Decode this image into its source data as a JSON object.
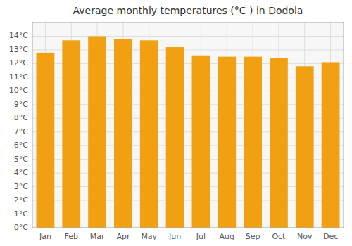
{
  "chart_data": {
    "type": "bar",
    "title": "Average monthly temperatures (°C ) in Dodola",
    "categories": [
      "Jan",
      "Feb",
      "Mar",
      "Apr",
      "May",
      "Jun",
      "Jul",
      "Aug",
      "Sep",
      "Oct",
      "Nov",
      "Dec"
    ],
    "values": [
      12.8,
      13.7,
      14.0,
      13.8,
      13.7,
      13.2,
      12.6,
      12.5,
      12.5,
      12.4,
      11.8,
      12.1
    ],
    "color": "#F0A010",
    "ylim": [
      0,
      15
    ],
    "yticks": [
      {
        "value": 0,
        "label": "0°C"
      },
      {
        "value": 1,
        "label": "1°C"
      },
      {
        "value": 2,
        "label": "2°C"
      },
      {
        "value": 3,
        "label": "3°C"
      },
      {
        "value": 4,
        "label": "4°C"
      },
      {
        "value": 5,
        "label": "5°C"
      },
      {
        "value": 6,
        "label": "6°C"
      },
      {
        "value": 7,
        "label": "7°C"
      },
      {
        "value": 8,
        "label": "8°C"
      },
      {
        "value": 9,
        "label": "9°C"
      },
      {
        "value": 10,
        "label": "10°C"
      },
      {
        "value": 11,
        "label": "11°C"
      },
      {
        "value": 12,
        "label": "12°C"
      },
      {
        "value": 13,
        "label": "13°C"
      },
      {
        "value": 14,
        "label": "14°C"
      }
    ],
    "grid": true
  }
}
